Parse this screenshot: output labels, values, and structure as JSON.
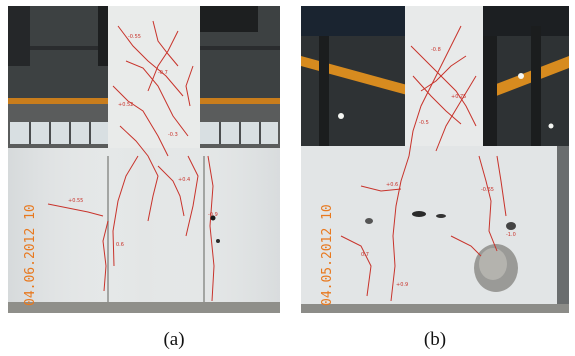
{
  "captions": {
    "left": "(a)",
    "right": "(b)"
  },
  "photo_a": {
    "date_stamp": "04.06.2012 10"
  },
  "photo_b": {
    "date_stamp": "04.05.2012 10"
  },
  "colors": {
    "crack_marks": "#c8332b",
    "date_stamp": "#e8791f",
    "specimen": "#eceeee",
    "lab_frame": "#2a2c2e",
    "crane_beam": "#d78b1f"
  }
}
